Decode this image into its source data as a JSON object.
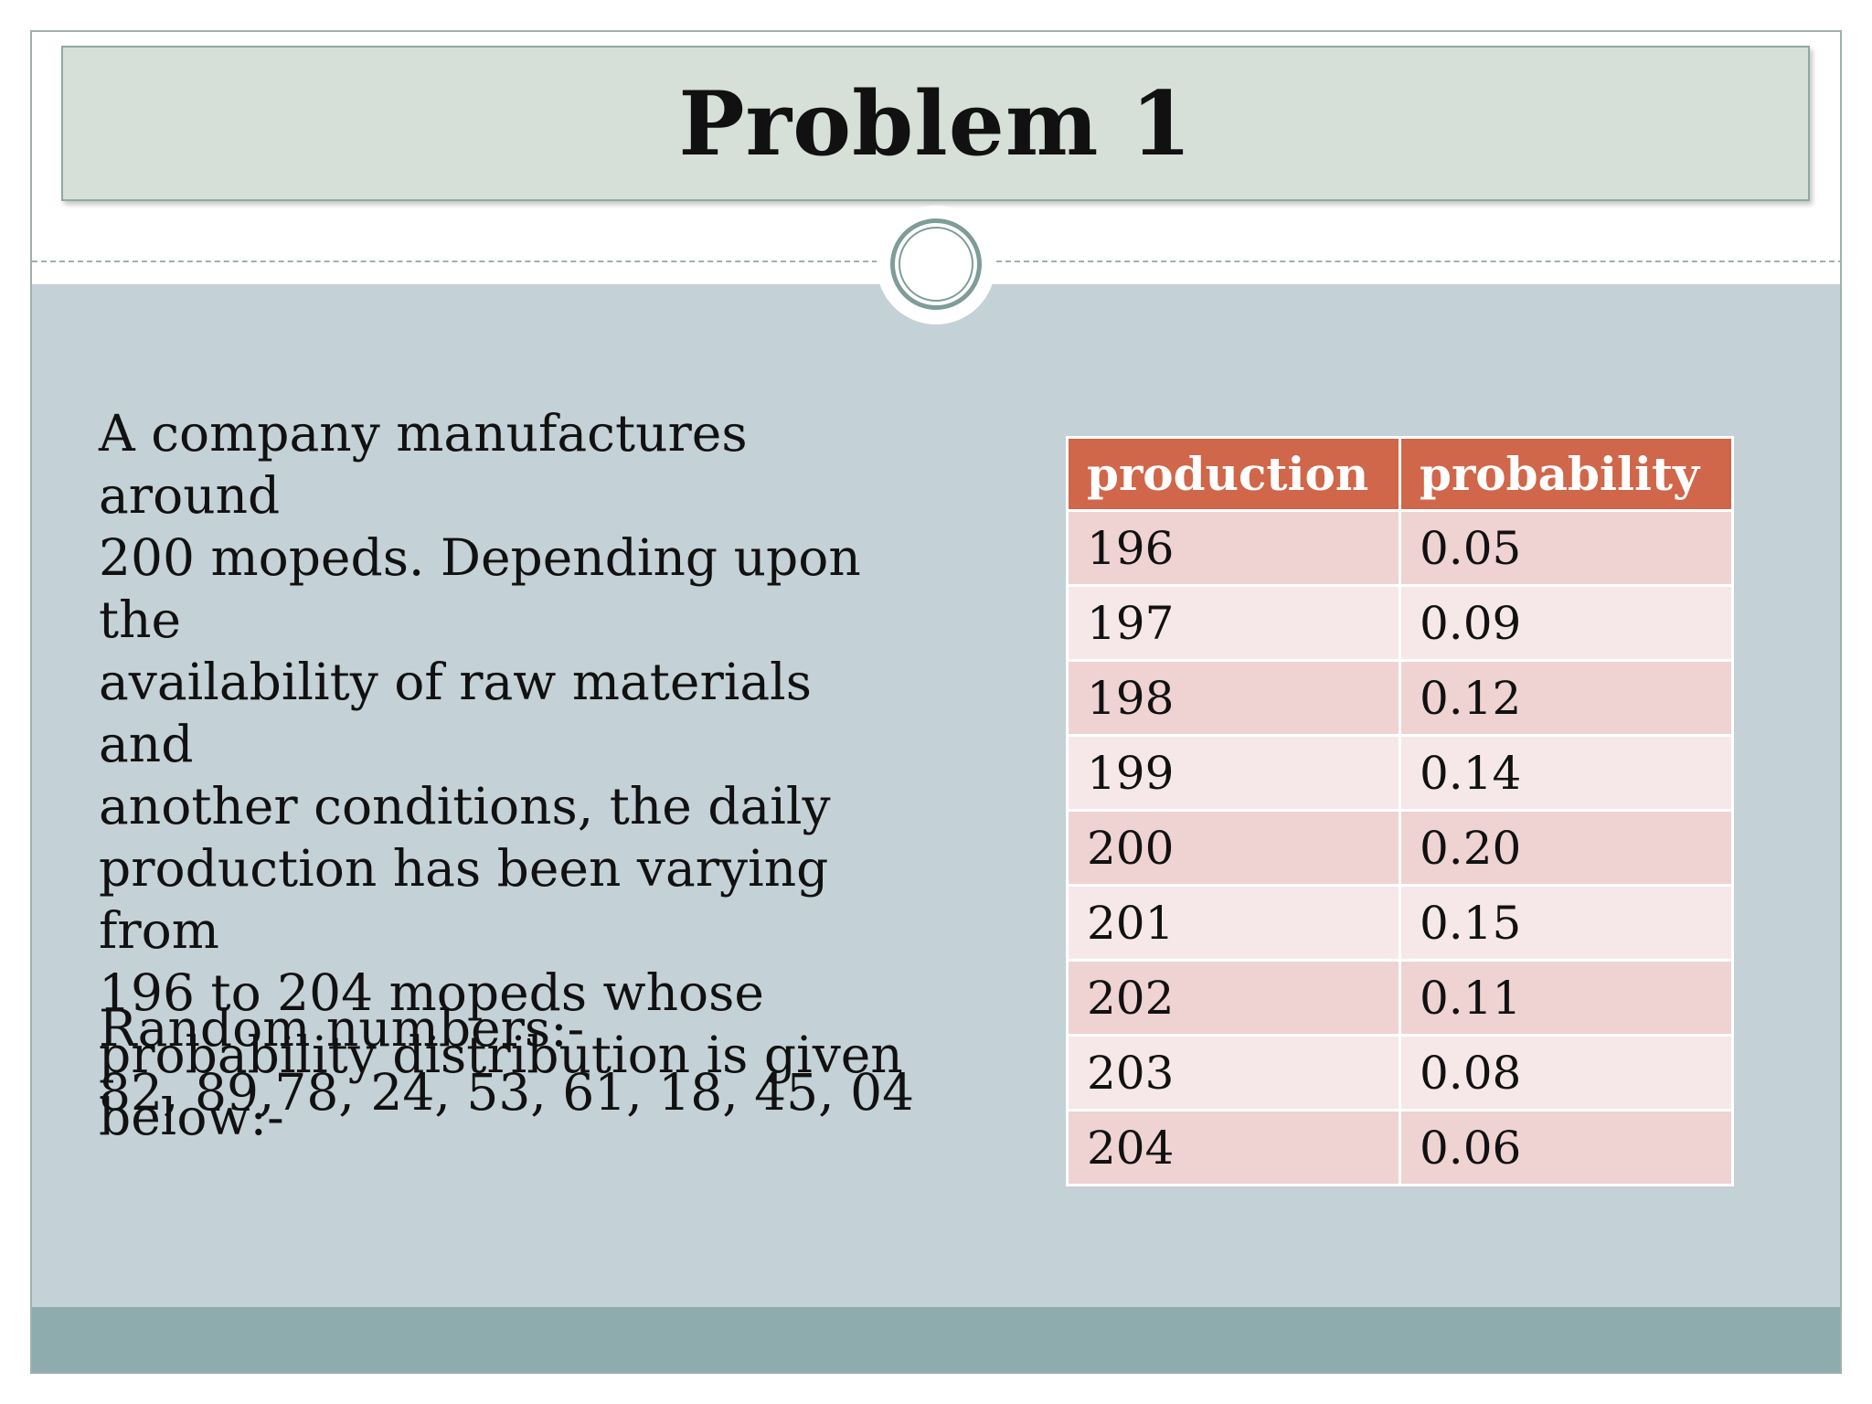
{
  "slide": {
    "title": "Problem 1"
  },
  "description": {
    "lines": [
      "A company manufactures around",
      "200 mopeds. Depending upon the",
      "availability of raw materials and",
      "another conditions, the daily",
      "production has been varying from",
      "196 to 204 mopeds whose",
      "probability distribution is given",
      "below:-"
    ]
  },
  "random_numbers": {
    "label": "Random numbers:-",
    "values": "82, 89,78, 24, 53, 61, 18, 45, 04"
  },
  "table": {
    "headers": [
      "production",
      "probability"
    ],
    "rows": [
      [
        "196",
        "0.05"
      ],
      [
        "197",
        "0.09"
      ],
      [
        "198",
        "0.12"
      ],
      [
        "199",
        "0.14"
      ],
      [
        "200",
        "0.20"
      ],
      [
        "201",
        "0.15"
      ],
      [
        "202",
        "0.11"
      ],
      [
        "203",
        "0.08"
      ],
      [
        "204",
        "0.06"
      ]
    ]
  },
  "colors": {
    "title_bar": "#d6e0d8",
    "body_panel": "#c4d1d6",
    "footer_band": "#8eabae",
    "table_header": "#d0664a",
    "row_odd": "#efd2d2",
    "row_even": "#f6e8e8"
  }
}
